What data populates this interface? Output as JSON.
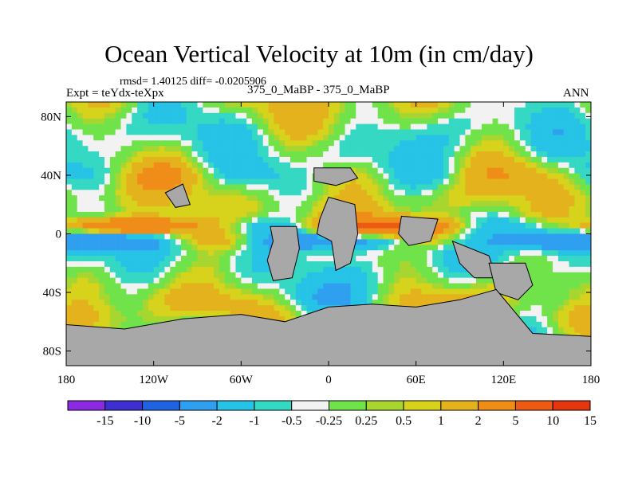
{
  "chart_data": {
    "type": "heatmap",
    "title": "Ocean Vertical Velocity at 10m (in cm/day)",
    "subtitle_stats": "rmsd= 1.40125 diff= -0.0205906",
    "left_label": "Expt = teYdx-teXpx",
    "center_label": "375_0_MaBP - 375_0_MaBP",
    "right_label": "ANN",
    "x_axis": {
      "range": [
        -180,
        180
      ],
      "ticks": [
        -180,
        -120,
        -60,
        0,
        60,
        120,
        180
      ],
      "tick_labels": [
        "180",
        "120W",
        "60W",
        "0",
        "60E",
        "120E",
        "180"
      ]
    },
    "y_axis": {
      "range": [
        -90,
        90
      ],
      "ticks": [
        -80,
        -40,
        0,
        40,
        80
      ],
      "tick_labels": [
        "80S",
        "40S",
        "0",
        "40N",
        "80N"
      ]
    },
    "colorbar": {
      "colors": [
        "#8a2be2",
        "#3f2fd1",
        "#1f63e0",
        "#2f9ff0",
        "#27c3e6",
        "#35d8c2",
        "#f2f2f2",
        "#70e24a",
        "#a6d62f",
        "#d7d21b",
        "#e3b21c",
        "#f08c18",
        "#ec5a14",
        "#e4360f"
      ],
      "labels": [
        "-15",
        "-10",
        "-5",
        "-2",
        "-1",
        "-0.5",
        "-0.25",
        "0.25",
        "0.5",
        "1",
        "2",
        "5",
        "10",
        "15"
      ]
    },
    "land_color": "#a8a8a8"
  }
}
